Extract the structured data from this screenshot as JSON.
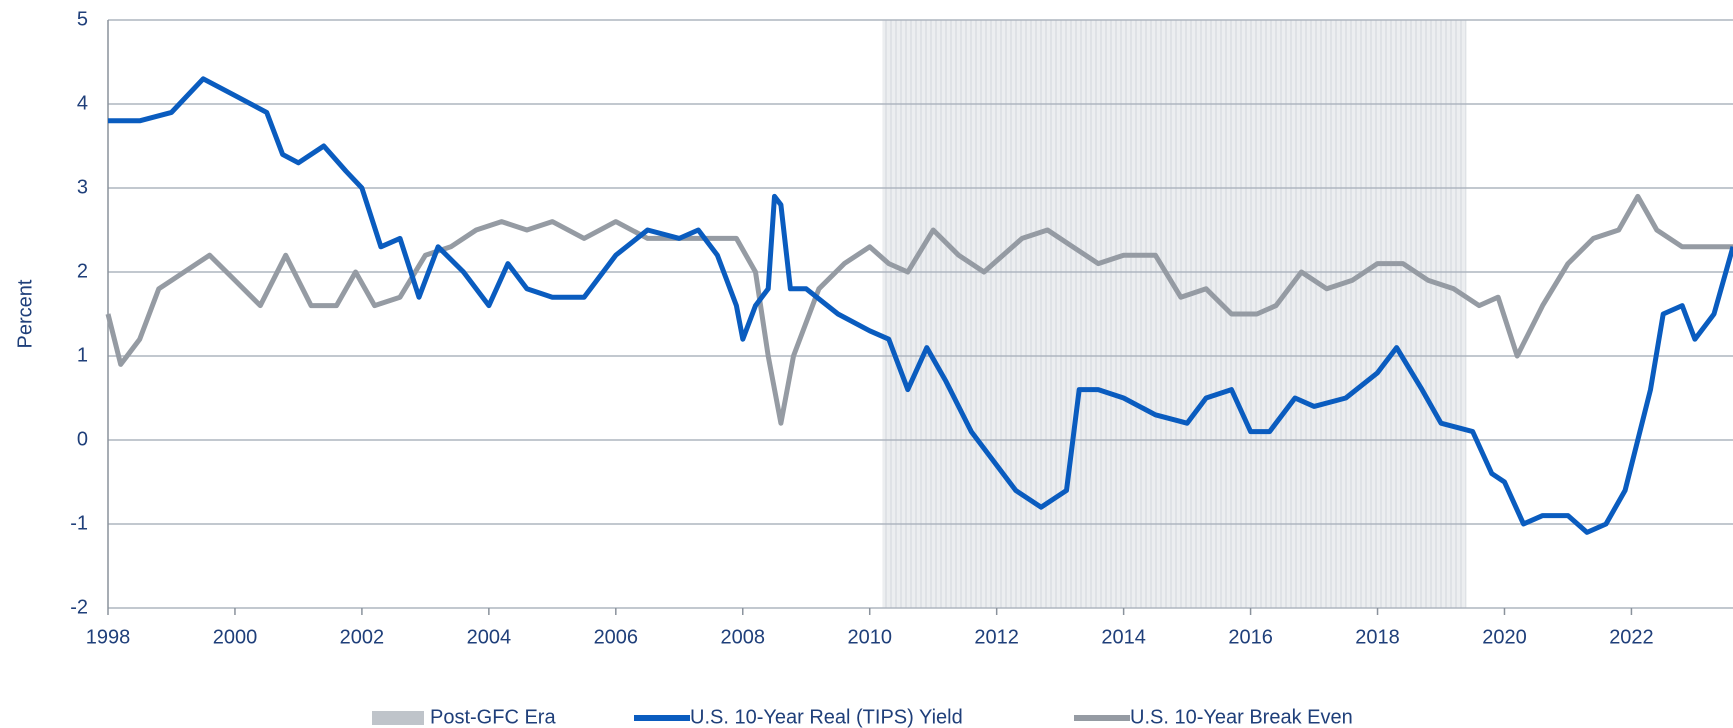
{
  "chart_data": {
    "type": "line",
    "ylabel": "Percent",
    "xlim": [
      1998,
      2023.6
    ],
    "xticks": [
      1998,
      2000,
      2002,
      2004,
      2006,
      2008,
      2010,
      2012,
      2014,
      2016,
      2018,
      2020,
      2022
    ],
    "ylim": [
      -2,
      5
    ],
    "yticks": [
      -2,
      -1,
      0,
      1,
      2,
      3,
      4,
      5
    ],
    "grid": true,
    "legend": "bottom",
    "shaded_regions": [
      {
        "name": "Post-GFC Era",
        "color": "#d9dce0",
        "start": 2010.2,
        "end": 2019.4
      }
    ],
    "series": [
      {
        "name": "U.S. 10-Year Real (TIPS) Yield",
        "color": "#0a5cbf",
        "x": [
          1998,
          1998.5,
          1999,
          1999.5,
          2000,
          2000.5,
          2000.75,
          2001,
          2001.4,
          2001.75,
          2002,
          2002.3,
          2002.6,
          2002.9,
          2003.2,
          2003.6,
          2004,
          2004.3,
          2004.6,
          2005,
          2005.5,
          2006,
          2006.5,
          2007,
          2007.3,
          2007.6,
          2007.9,
          2008,
          2008.2,
          2008.4,
          2008.5,
          2008.6,
          2008.75,
          2009,
          2009.5,
          2010,
          2010.3,
          2010.6,
          2010.9,
          2011.2,
          2011.6,
          2012,
          2012.3,
          2012.7,
          2012.9,
          2013.1,
          2013.3,
          2013.6,
          2014,
          2014.5,
          2015,
          2015.3,
          2015.7,
          2016,
          2016.3,
          2016.7,
          2017,
          2017.5,
          2018,
          2018.3,
          2018.7,
          2019,
          2019.5,
          2019.8,
          2020,
          2020.3,
          2020.6,
          2021,
          2021.3,
          2021.6,
          2021.9,
          2022.1,
          2022.3,
          2022.5,
          2022.8,
          2023,
          2023.3,
          2023.6
        ],
        "values": [
          3.8,
          3.8,
          3.9,
          4.3,
          4.1,
          3.9,
          3.4,
          3.3,
          3.5,
          3.2,
          3.0,
          2.3,
          2.4,
          1.7,
          2.3,
          2.0,
          1.6,
          2.1,
          1.8,
          1.7,
          1.7,
          2.2,
          2.5,
          2.4,
          2.5,
          2.2,
          1.6,
          1.2,
          1.6,
          1.8,
          2.9,
          2.8,
          1.8,
          1.8,
          1.5,
          1.3,
          1.2,
          0.6,
          1.1,
          0.7,
          0.1,
          -0.3,
          -0.6,
          -0.8,
          -0.7,
          -0.6,
          0.6,
          0.6,
          0.5,
          0.3,
          0.2,
          0.5,
          0.6,
          0.1,
          0.1,
          0.5,
          0.4,
          0.5,
          0.8,
          1.1,
          0.6,
          0.2,
          0.1,
          -0.4,
          -0.5,
          -1.0,
          -0.9,
          -0.9,
          -1.1,
          -1.0,
          -0.6,
          0.0,
          0.6,
          1.5,
          1.6,
          1.2,
          1.5,
          2.3
        ]
      },
      {
        "name": "U.S. 10-Year Break Even",
        "color": "#959ba3",
        "x": [
          1998,
          1998.2,
          1998.5,
          1998.8,
          1999,
          1999.4,
          1999.6,
          2000,
          2000.4,
          2000.8,
          2001.2,
          2001.6,
          2001.9,
          2002.2,
          2002.6,
          2003,
          2003.4,
          2003.8,
          2004.2,
          2004.6,
          2005,
          2005.5,
          2006,
          2006.5,
          2007,
          2007.5,
          2007.9,
          2008.2,
          2008.4,
          2008.6,
          2008.8,
          2009.2,
          2009.6,
          2010,
          2010.3,
          2010.6,
          2011,
          2011.4,
          2011.8,
          2012.1,
          2012.4,
          2012.8,
          2013.2,
          2013.6,
          2014,
          2014.5,
          2014.9,
          2015.3,
          2015.7,
          2016.1,
          2016.4,
          2016.8,
          2017.2,
          2017.6,
          2018,
          2018.4,
          2018.8,
          2019.2,
          2019.6,
          2019.9,
          2020.2,
          2020.6,
          2021,
          2021.4,
          2021.8,
          2022.1,
          2022.4,
          2022.8,
          2023.2,
          2023.6
        ],
        "values": [
          1.5,
          0.9,
          1.2,
          1.8,
          1.9,
          2.1,
          2.2,
          1.9,
          1.6,
          2.2,
          1.6,
          1.6,
          2.0,
          1.6,
          1.7,
          2.2,
          2.3,
          2.5,
          2.6,
          2.5,
          2.6,
          2.4,
          2.6,
          2.4,
          2.4,
          2.4,
          2.4,
          2.0,
          1.0,
          0.2,
          1.0,
          1.8,
          2.1,
          2.3,
          2.1,
          2.0,
          2.5,
          2.2,
          2.0,
          2.2,
          2.4,
          2.5,
          2.3,
          2.1,
          2.2,
          2.2,
          1.7,
          1.8,
          1.5,
          1.5,
          1.6,
          2.0,
          1.8,
          1.9,
          2.1,
          2.1,
          1.9,
          1.8,
          1.6,
          1.7,
          1.0,
          1.6,
          2.1,
          2.4,
          2.5,
          2.9,
          2.5,
          2.3,
          2.3,
          2.3
        ]
      }
    ]
  }
}
